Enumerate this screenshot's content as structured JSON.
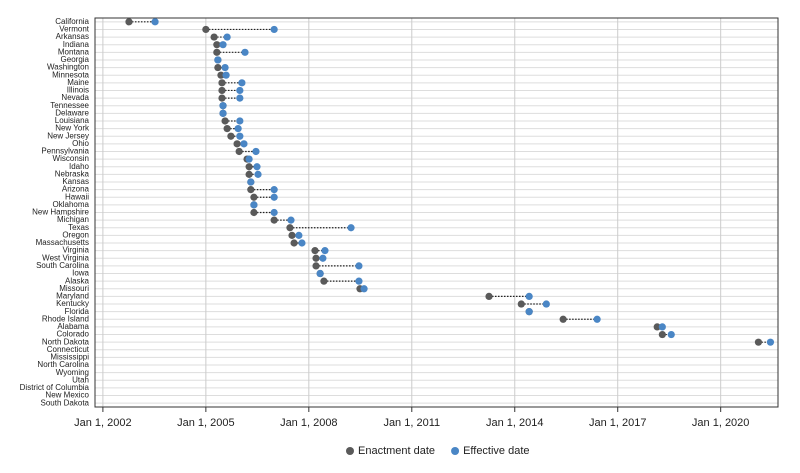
{
  "chart_data": {
    "type": "dumbbell",
    "categories": [
      "California",
      "Vermont",
      "Arkansas",
      "Indiana",
      "Montana",
      "Georgia",
      "Washington",
      "Minnesota",
      "Maine",
      "Illinois",
      "Nevada",
      "Tennessee",
      "Delaware",
      "Louisiana",
      "New York",
      "New Jersey",
      "Ohio",
      "Pennsylvania",
      "Wisconsin",
      "Idaho",
      "Nebraska",
      "Kansas",
      "Arizona",
      "Hawaii",
      "Oklahoma",
      "New Hampshire",
      "Michigan",
      "Texas",
      "Oregon",
      "Massachusetts",
      "Virginia",
      "West Virginia",
      "South Carolina",
      "Iowa",
      "Alaska",
      "Missouri",
      "Maryland",
      "Kentucky",
      "Florida",
      "Rhode Island",
      "Alabama",
      "Colorado",
      "North Dakota",
      "Connecticut",
      "Mississippi",
      "North Carolina",
      "Wyoming",
      "Utah",
      "District of Columbia",
      "New Mexico",
      "South Dakota"
    ],
    "series": [
      {
        "name": "Enactment date",
        "color": "#5a5a5a",
        "values": [
          2002.76,
          2005.0,
          2005.24,
          2005.32,
          2005.32,
          2005.35,
          2005.35,
          2005.44,
          2005.47,
          2005.47,
          2005.47,
          2005.5,
          2005.5,
          2005.56,
          2005.62,
          2005.73,
          2005.91,
          2005.97,
          2006.2,
          2006.26,
          2006.26,
          2006.31,
          2006.31,
          2006.4,
          2006.4,
          2006.4,
          2006.99,
          2007.45,
          2007.51,
          2007.57,
          2008.18,
          2008.21,
          2008.21,
          2008.33,
          2008.44,
          2009.49,
          2013.25,
          2014.19,
          2014.42,
          2015.41,
          2018.15,
          2018.3,
          2021.1,
          null,
          null,
          null,
          null,
          null,
          null,
          null,
          null
        ]
      },
      {
        "name": "Effective date",
        "color": "#4a86c5",
        "values": [
          2003.52,
          2006.99,
          2005.62,
          2005.5,
          2006.14,
          2005.35,
          2005.56,
          2005.59,
          2006.05,
          2005.99,
          2005.99,
          2005.5,
          2005.5,
          2005.99,
          2005.94,
          2005.99,
          2006.11,
          2006.46,
          2006.26,
          2006.49,
          2006.52,
          2006.31,
          2006.99,
          2006.99,
          2006.4,
          2006.99,
          2007.48,
          2009.23,
          2007.71,
          2007.8,
          2008.47,
          2008.41,
          2009.46,
          2008.33,
          2009.46,
          2009.61,
          2014.42,
          2014.92,
          2014.42,
          2016.4,
          2018.3,
          2018.56,
          2021.45,
          null,
          null,
          null,
          null,
          null,
          null,
          null,
          null
        ]
      }
    ],
    "xlim": [
      2001.77,
      2021.67
    ],
    "xticks": [
      {
        "value": 2002,
        "label": "Jan 1, 2002"
      },
      {
        "value": 2005,
        "label": "Jan 1, 2005"
      },
      {
        "value": 2008,
        "label": "Jan 1, 2008"
      },
      {
        "value": 2011,
        "label": "Jan 1, 2011"
      },
      {
        "value": 2014,
        "label": "Jan 1, 2014"
      },
      {
        "value": 2017,
        "label": "Jan 1, 2017"
      },
      {
        "value": 2020,
        "label": "Jan 1, 2020"
      }
    ],
    "grid": true,
    "legend": "bottom"
  }
}
